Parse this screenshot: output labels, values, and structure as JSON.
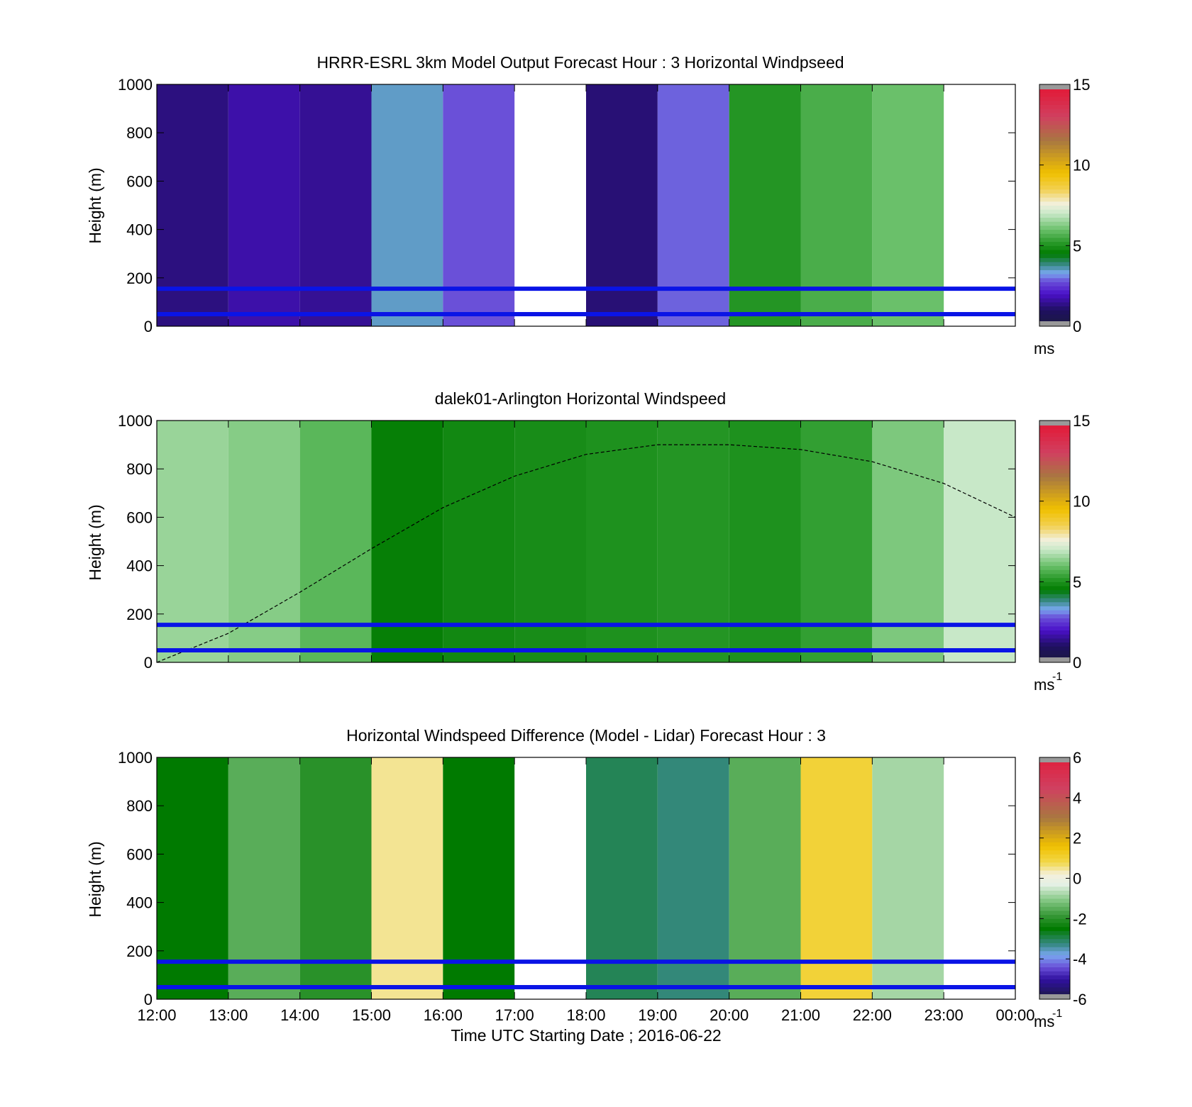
{
  "figure": {
    "xlabel": "Time UTC  Starting Date ; 2016-06-22",
    "xtick_labels": [
      "12:00",
      "13:00",
      "14:00",
      "15:00",
      "16:00",
      "17:00",
      "18:00",
      "19:00",
      "20:00",
      "21:00",
      "22:00",
      "23:00",
      "00:00"
    ],
    "ytick_labels": [
      "0",
      "200",
      "400",
      "600",
      "800",
      "1000"
    ],
    "reference_line_heights_m": [
      50,
      155
    ],
    "reference_line_color": "#0a14e6"
  },
  "chart_data": [
    {
      "type": "heatmap",
      "title": "HRRR-ESRL 3km Model Output   Forecast Hour : 3 Horizontal Windpseed",
      "ylabel": "Height (m)",
      "ylim": [
        0,
        1000
      ],
      "xlim_hours": [
        12,
        24
      ],
      "colorbar": {
        "min": 0,
        "max": 15,
        "ticks": [
          "0",
          "5",
          "10",
          "15"
        ],
        "unit": "ms",
        "unit_sup": ""
      },
      "columns": [
        {
          "hour": 12,
          "value": 1.3
        },
        {
          "hour": 13,
          "value": 1.7
        },
        {
          "hour": 14,
          "value": 1.5
        },
        {
          "hour": 15,
          "value": 3.5
        },
        {
          "hour": 16,
          "value": 2.8
        },
        {
          "hour": 17,
          "value": null
        },
        {
          "hour": 18,
          "value": 1.2
        },
        {
          "hour": 19,
          "value": 2.9
        },
        {
          "hour": 20,
          "value": 5.1
        },
        {
          "hour": 21,
          "value": 5.6
        },
        {
          "hour": 22,
          "value": 6.0
        },
        {
          "hour": 23,
          "value": null
        }
      ]
    },
    {
      "type": "heatmap",
      "title": "dalek01-Arlington  Horizontal Windspeed",
      "ylabel": "Height (m)",
      "ylim": [
        0,
        1000
      ],
      "xlim_hours": [
        12,
        24
      ],
      "colorbar": {
        "min": 0,
        "max": 15,
        "ticks": [
          "0",
          "5",
          "10",
          "15"
        ],
        "unit": "ms",
        "unit_sup": "-1"
      },
      "boundary_layer_curve": {
        "hours": [
          12.0,
          13.0,
          14.0,
          15.0,
          16.0,
          17.0,
          18.0,
          19.0,
          20.0,
          21.0,
          22.0,
          23.0,
          24.0
        ],
        "heights_m": [
          0,
          120,
          290,
          470,
          640,
          770,
          860,
          900,
          900,
          880,
          830,
          740,
          600
        ]
      },
      "columns": [
        {
          "hour": 12,
          "value": 6.5
        },
        {
          "hour": 13,
          "value": 6.3
        },
        {
          "hour": 14,
          "value": 5.8
        },
        {
          "hour": 15,
          "value": 4.6
        },
        {
          "hour": 16,
          "value": 4.8
        },
        {
          "hour": 17,
          "value": 4.9
        },
        {
          "hour": 18,
          "value": 5.0
        },
        {
          "hour": 19,
          "value": 5.1
        },
        {
          "hour": 20,
          "value": 5.0
        },
        {
          "hour": 21,
          "value": 5.3
        },
        {
          "hour": 22,
          "value": 6.2
        },
        {
          "hour": 23,
          "value": 7.0
        }
      ]
    },
    {
      "type": "heatmap",
      "title": "Horizontal Windspeed Difference (Model - Lidar) Forecast Hour : 3",
      "ylabel": "Height (m)",
      "ylim": [
        0,
        1000
      ],
      "xlim_hours": [
        12,
        24
      ],
      "colorbar": {
        "min": -6,
        "max": 6,
        "ticks": [
          "-6",
          "-4",
          "-2",
          "0",
          "2",
          "4",
          "6"
        ],
        "unit": "ms",
        "unit_sup": "-1"
      },
      "columns": [
        {
          "hour": 12,
          "value": -2.5
        },
        {
          "hour": 13,
          "value": -1.5
        },
        {
          "hour": 14,
          "value": -2.0
        },
        {
          "hour": 15,
          "value": 0.5
        },
        {
          "hour": 16,
          "value": -2.5
        },
        {
          "hour": 17,
          "value": null
        },
        {
          "hour": 18,
          "value": -3.0
        },
        {
          "hour": 19,
          "value": -3.2
        },
        {
          "hour": 20,
          "value": -1.5
        },
        {
          "hour": 21,
          "value": 1.0
        },
        {
          "hour": 22,
          "value": -0.8
        },
        {
          "hour": 23,
          "value": null
        }
      ]
    }
  ]
}
